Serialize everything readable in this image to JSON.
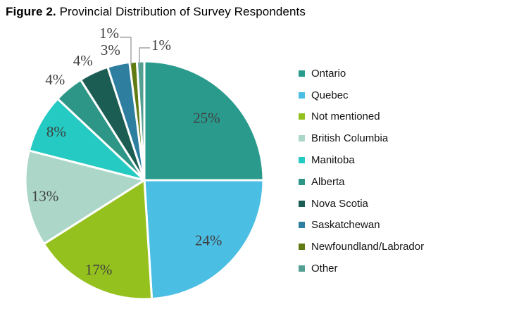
{
  "figure": {
    "label": "Figure 2.",
    "title": "Provincial Distribution of Survey Respondents"
  },
  "chart_data": {
    "type": "pie",
    "title": "Figure 2. Provincial Distribution of Survey Respondents",
    "legend_position": "right",
    "start_angle_deg": 0,
    "direction": "clockwise",
    "data_label_format": "percent",
    "label_color": "#3F3F3F",
    "leader_line_color": "#A6A6A6",
    "slice_border_color": "#FFFFFF",
    "slices": [
      {
        "label": "Ontario",
        "value": 25,
        "color": "#2A9A8D",
        "label_style": "inside"
      },
      {
        "label": "Quebec",
        "value": 24,
        "color": "#4BBEE3",
        "label_style": "inside"
      },
      {
        "label": "Not mentioned",
        "value": 17,
        "color": "#95C11F",
        "label_style": "inside"
      },
      {
        "label": "British Columbia",
        "value": 13,
        "color": "#ACD7C8",
        "label_style": "inside"
      },
      {
        "label": "Manitoba",
        "value": 8,
        "color": "#25CAC2",
        "label_style": "inside"
      },
      {
        "label": "Alberta",
        "value": 4,
        "color": "#2E9687",
        "label_style": "outside"
      },
      {
        "label": "Nova Scotia",
        "value": 4,
        "color": "#1C5D53",
        "label_style": "outside"
      },
      {
        "label": "Saskatchewan",
        "value": 3,
        "color": "#2E7EA0",
        "label_style": "outside"
      },
      {
        "label": "Newfoundland/Labrador",
        "value": 1,
        "color": "#5F7B12",
        "label_style": "leader-left"
      },
      {
        "label": "Other",
        "value": 1,
        "color": "#53A093",
        "label_style": "leader-right"
      }
    ]
  }
}
